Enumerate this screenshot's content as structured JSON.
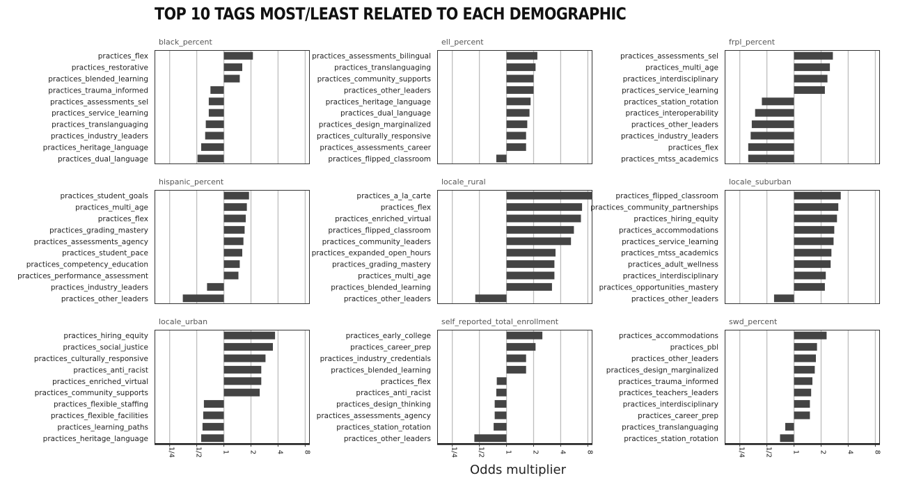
{
  "title": "TOP 10 TAGS MOST/LEAST RELATED TO EACH DEMOGRAPHIC",
  "chart_data": {
    "type": "bar",
    "orientation": "horizontal",
    "layout": "3x3 facet grid",
    "xlabel": "Odds multiplier",
    "x_scale": "log2",
    "xlim": [
      0.17,
      9
    ],
    "x_ticks": [
      0.25,
      0.5,
      1,
      2,
      4,
      8
    ],
    "x_tick_labels": [
      "1/4",
      "1/2",
      "1",
      "2",
      "4",
      "8"
    ],
    "grid": "vertical lines at ticks",
    "bar_color": "#444444",
    "panels": [
      {
        "name": "black_percent",
        "bars": [
          {
            "label": "practices_flex",
            "value": 2.1
          },
          {
            "label": "practices_restorative",
            "value": 1.6
          },
          {
            "label": "practices_blended_learning",
            "value": 1.5
          },
          {
            "label": "practices_trauma_informed",
            "value": 0.71
          },
          {
            "label": "practices_assessments_sel",
            "value": 0.68
          },
          {
            "label": "practices_service_learning",
            "value": 0.68
          },
          {
            "label": "practices_translanguaging",
            "value": 0.63
          },
          {
            "label": "practices_industry_leaders",
            "value": 0.62
          },
          {
            "label": "practices_heritage_language",
            "value": 0.56
          },
          {
            "label": "practices_dual_language",
            "value": 0.51
          }
        ]
      },
      {
        "name": "ell_percent",
        "bars": [
          {
            "label": "practices_assessments_bilingual",
            "value": 2.2
          },
          {
            "label": "practices_translanguaging",
            "value": 2.1
          },
          {
            "label": "practices_community_supports",
            "value": 2.0
          },
          {
            "label": "practices_other_leaders",
            "value": 2.0
          },
          {
            "label": "practices_heritage_language",
            "value": 1.85
          },
          {
            "label": "practices_dual_language",
            "value": 1.8
          },
          {
            "label": "practices_design_marginalized",
            "value": 1.7
          },
          {
            "label": "practices_culturally_responsive",
            "value": 1.65
          },
          {
            "label": "practices_assessments_career",
            "value": 1.65
          },
          {
            "label": "practices_flipped_classroom",
            "value": 0.77
          }
        ]
      },
      {
        "name": "frpl_percent",
        "bars": [
          {
            "label": "practices_assessments_sel",
            "value": 2.7
          },
          {
            "label": "practices_multi_age",
            "value": 2.5
          },
          {
            "label": "practices_interdisciplinary",
            "value": 2.35
          },
          {
            "label": "practices_service_learning",
            "value": 2.2
          },
          {
            "label": "practices_station_rotation",
            "value": 0.44
          },
          {
            "label": "practices_interoperability",
            "value": 0.37
          },
          {
            "label": "practices_other_leaders",
            "value": 0.34
          },
          {
            "label": "practices_industry_leaders",
            "value": 0.33
          },
          {
            "label": "practices_flex",
            "value": 0.31
          },
          {
            "label": "practices_mtss_academics",
            "value": 0.31
          }
        ]
      },
      {
        "name": "hispanic_percent",
        "bars": [
          {
            "label": "practices_student_goals",
            "value": 1.9
          },
          {
            "label": "practices_multi_age",
            "value": 1.8
          },
          {
            "label": "practices_flex",
            "value": 1.75
          },
          {
            "label": "practices_grading_mastery",
            "value": 1.7
          },
          {
            "label": "practices_assessments_agency",
            "value": 1.65
          },
          {
            "label": "practices_student_pace",
            "value": 1.6
          },
          {
            "label": "practices_competency_education",
            "value": 1.5
          },
          {
            "label": "practices_performance_assessment",
            "value": 1.45
          },
          {
            "label": "practices_industry_leaders",
            "value": 0.65
          },
          {
            "label": "practices_other_leaders",
            "value": 0.35
          }
        ]
      },
      {
        "name": "locale_rural",
        "bars": [
          {
            "label": "practices_a_la_carte",
            "value": 9
          },
          {
            "label": "practices_flex",
            "value": 6.9
          },
          {
            "label": "practices_enriched_virtual",
            "value": 6.7
          },
          {
            "label": "practices_flipped_classroom",
            "value": 5.6
          },
          {
            "label": "practices_community_leaders",
            "value": 5.2
          },
          {
            "label": "practices_expanded_open_hours",
            "value": 3.5
          },
          {
            "label": "practices_grading_mastery",
            "value": 3.4
          },
          {
            "label": "practices_multi_age",
            "value": 3.4
          },
          {
            "label": "practices_blended_learning",
            "value": 3.2
          },
          {
            "label": "practices_other_leaders",
            "value": 0.45
          }
        ]
      },
      {
        "name": "locale_suburban",
        "bars": [
          {
            "label": "practices_flipped_classroom",
            "value": 3.3
          },
          {
            "label": "practices_community_partnerships",
            "value": 3.1
          },
          {
            "label": "practices_hiring_equity",
            "value": 3.0
          },
          {
            "label": "practices_accommodations",
            "value": 2.8
          },
          {
            "label": "practices_service_learning",
            "value": 2.75
          },
          {
            "label": "practices_mtss_academics",
            "value": 2.6
          },
          {
            "label": "practices_adult_wellness",
            "value": 2.55
          },
          {
            "label": "practices_interdisciplinary",
            "value": 2.25
          },
          {
            "label": "practices_opportunities_mastery",
            "value": 2.2
          },
          {
            "label": "practices_other_leaders",
            "value": 0.6
          }
        ]
      },
      {
        "name": "locale_urban",
        "bars": [
          {
            "label": "practices_hiring_equity",
            "value": 3.7
          },
          {
            "label": "practices_social_justice",
            "value": 3.5
          },
          {
            "label": "practices_culturally_responsive",
            "value": 2.9
          },
          {
            "label": "practices_anti_racist",
            "value": 2.6
          },
          {
            "label": "practices_enriched_virtual",
            "value": 2.6
          },
          {
            "label": "practices_community_supports",
            "value": 2.5
          },
          {
            "label": "practices_flexible_staffing",
            "value": 0.6
          },
          {
            "label": "practices_flexible_facilities",
            "value": 0.59
          },
          {
            "label": "practices_learning_paths",
            "value": 0.58
          },
          {
            "label": "practices_heritage_language",
            "value": 0.56
          }
        ]
      },
      {
        "name": "self_reported_total_enrollment",
        "bars": [
          {
            "label": "practices_early_college",
            "value": 2.5
          },
          {
            "label": "practices_career_prep",
            "value": 2.1
          },
          {
            "label": "practices_industry_credentials",
            "value": 1.65
          },
          {
            "label": "practices_blended_learning",
            "value": 1.65
          },
          {
            "label": "practices_flex",
            "value": 0.78
          },
          {
            "label": "practices_anti_racist",
            "value": 0.77
          },
          {
            "label": "practices_design_thinking",
            "value": 0.74
          },
          {
            "label": "practices_assessments_agency",
            "value": 0.74
          },
          {
            "label": "practices_station_rotation",
            "value": 0.72
          },
          {
            "label": "practices_other_leaders",
            "value": 0.44
          }
        ]
      },
      {
        "name": "swd_percent",
        "bars": [
          {
            "label": "practices_accommodations",
            "value": 2.3
          },
          {
            "label": "practices_pbl",
            "value": 1.8
          },
          {
            "label": "practices_other_leaders",
            "value": 1.75
          },
          {
            "label": "practices_design_marginalized",
            "value": 1.7
          },
          {
            "label": "practices_trauma_informed",
            "value": 1.6
          },
          {
            "label": "practices_teachers_leaders",
            "value": 1.55
          },
          {
            "label": "practices_interdisciplinary",
            "value": 1.5
          },
          {
            "label": "practices_career_prep",
            "value": 1.5
          },
          {
            "label": "practices_translanguaging",
            "value": 0.8
          },
          {
            "label": "practices_station_rotation",
            "value": 0.7
          }
        ]
      }
    ]
  }
}
